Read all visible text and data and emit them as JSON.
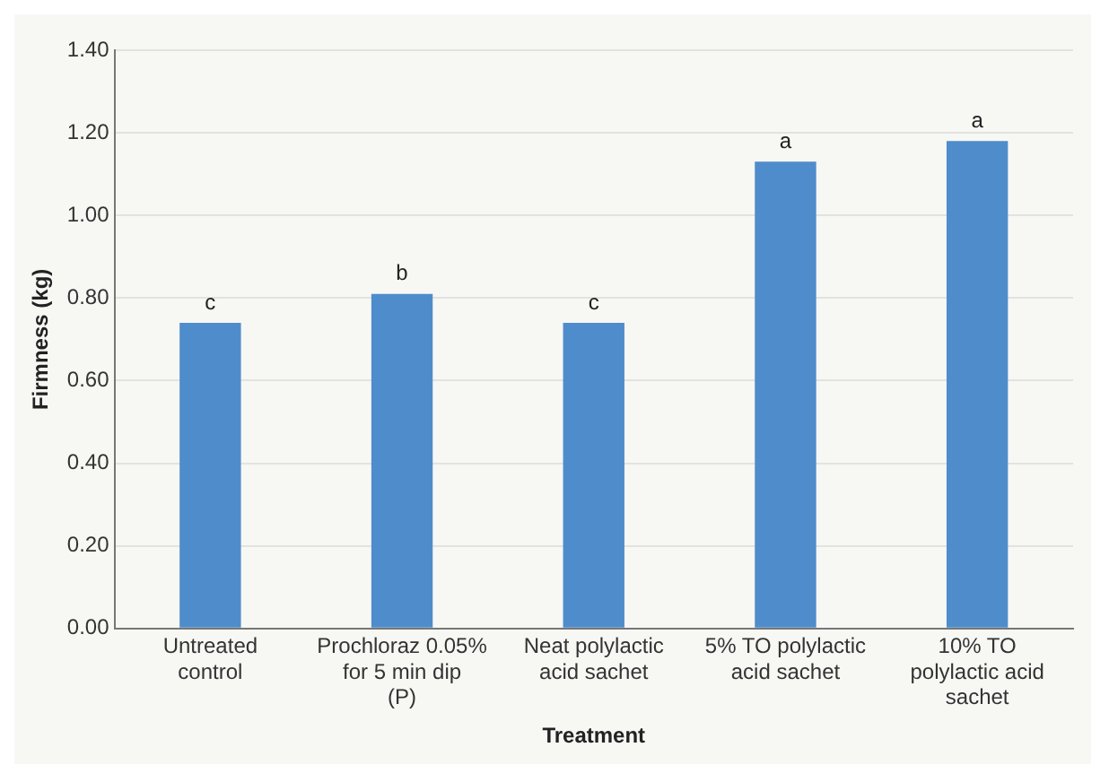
{
  "chart_data": {
    "type": "bar",
    "xlabel": "Treatment",
    "ylabel": "Firmness (kg)",
    "categories": [
      "Untreated control",
      "Prochloraz 0.05% for 5 min dip (P)",
      "Neat polylactic acid sachet",
      "5% TO polylactic acid sachet",
      "10% TO polylactic acid sachet"
    ],
    "values": [
      0.74,
      0.81,
      0.74,
      1.13,
      1.18
    ],
    "color": "#4f8ccb",
    "ylim": [
      0,
      1.4
    ],
    "yticks": [
      {
        "value": 0,
        "label": "0.00"
      },
      {
        "value": 0.2,
        "label": "0.20"
      },
      {
        "value": 0.4,
        "label": "0.40"
      },
      {
        "value": 0.6,
        "label": "0.60"
      },
      {
        "value": 0.8,
        "label": "0.80"
      },
      {
        "value": 1,
        "label": "1.00"
      },
      {
        "value": 1.2,
        "label": "1.20"
      },
      {
        "value": 1.4,
        "label": "1.40"
      }
    ],
    "annotations": [
      {
        "text": "c",
        "x": "Untreated control",
        "y": 0.74
      },
      {
        "text": "b",
        "x": "Prochloraz 0.05% for 5 min dip (P)",
        "y": 0.81
      },
      {
        "text": "c",
        "x": "Neat polylactic acid sachet",
        "y": 0.74
      },
      {
        "text": "a",
        "x": "5% TO polylactic acid sachet",
        "y": 1.13
      },
      {
        "text": "a",
        "x": "10% TO polylactic acid sachet",
        "y": 1.18
      }
    ],
    "grid": "y",
    "legend": false
  }
}
